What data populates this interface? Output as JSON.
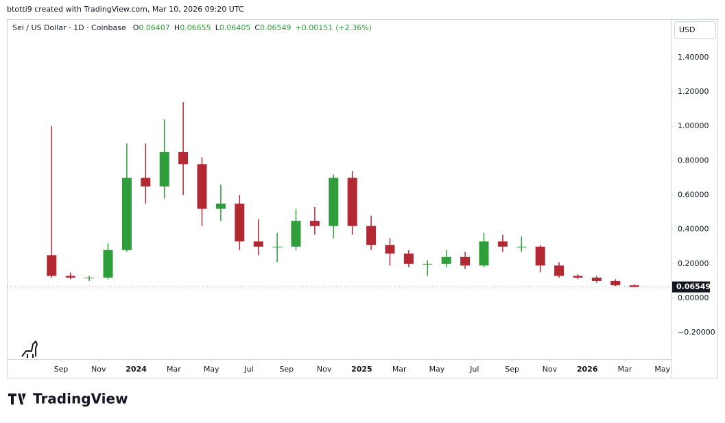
{
  "header": "btotti9 created with TradingView.com, Mar 10, 2026 09:20 UTC",
  "brand": "TradingView",
  "chart_data": {
    "type": "candlestick",
    "title": "Sei / US Dollar · 1D · Coinbase",
    "legend": {
      "labels": [
        "O",
        "H",
        "L",
        "C"
      ],
      "open": 0.06407,
      "high": 0.06655,
      "low": 0.06405,
      "change": {
        "value": 0.00151,
        "label": "+0.00151"
      },
      "change_pct": {
        "value": 2.36,
        "label": "(+2.36%)"
      }
    },
    "currency": "USD",
    "up_color": "#2e9e3a",
    "down_color": "#b22833",
    "x": [
      "2023-08",
      "2023-09",
      "2023-10",
      "2023-11",
      "2023-12",
      "2024-01",
      "2024-02",
      "2024-03",
      "2024-04",
      "2024-05",
      "2024-06",
      "2024-07",
      "2024-08",
      "2024-09",
      "2024-10",
      "2024-11",
      "2024-12",
      "2025-01",
      "2025-02",
      "2025-03",
      "2025-04",
      "2025-05",
      "2025-06",
      "2025-07",
      "2025-08",
      "2025-09",
      "2025-10",
      "2025-11",
      "2025-12",
      "2026-01",
      "2026-02",
      "2026-03"
    ],
    "open": [
      0.25,
      0.13,
      0.12,
      0.12,
      0.28,
      0.7,
      0.65,
      0.85,
      0.78,
      0.52,
      0.55,
      0.33,
      0.3,
      0.3,
      0.45,
      0.42,
      0.7,
      0.42,
      0.31,
      0.26,
      0.2,
      0.2,
      0.24,
      0.19,
      0.33,
      0.3,
      0.3,
      0.19,
      0.13,
      0.12,
      0.1,
      0.075
    ],
    "high": [
      1.0,
      0.15,
      0.13,
      0.32,
      0.9,
      0.9,
      1.04,
      1.14,
      0.82,
      0.66,
      0.6,
      0.46,
      0.38,
      0.52,
      0.53,
      0.72,
      0.74,
      0.48,
      0.35,
      0.28,
      0.22,
      0.28,
      0.27,
      0.38,
      0.37,
      0.36,
      0.31,
      0.21,
      0.14,
      0.13,
      0.11,
      0.08
    ],
    "low": [
      0.12,
      0.11,
      0.1,
      0.11,
      0.27,
      0.55,
      0.58,
      0.6,
      0.42,
      0.45,
      0.28,
      0.25,
      0.21,
      0.28,
      0.37,
      0.35,
      0.37,
      0.28,
      0.19,
      0.18,
      0.13,
      0.18,
      0.17,
      0.18,
      0.27,
      0.27,
      0.15,
      0.12,
      0.11,
      0.09,
      0.07,
      0.063
    ],
    "close": [
      0.13,
      0.12,
      0.12,
      0.28,
      0.7,
      0.65,
      0.85,
      0.78,
      0.52,
      0.55,
      0.33,
      0.3,
      0.3,
      0.45,
      0.42,
      0.7,
      0.42,
      0.31,
      0.26,
      0.2,
      0.2,
      0.24,
      0.19,
      0.33,
      0.3,
      0.3,
      0.19,
      0.13,
      0.12,
      0.1,
      0.075,
      0.06549
    ],
    "ylim": [
      -0.355,
      1.623
    ],
    "yticks": [
      {
        "value": -0.2,
        "label": "−0.20000"
      },
      {
        "value": 0,
        "label": "0.00000"
      },
      {
        "value": 0.2,
        "label": "0.20000"
      },
      {
        "value": 0.4,
        "label": "0.40000"
      },
      {
        "value": 0.6,
        "label": "0.60000"
      },
      {
        "value": 0.8,
        "label": "0.80000"
      },
      {
        "value": 1.0,
        "label": "1.00000"
      },
      {
        "value": 1.2,
        "label": "1.20000"
      },
      {
        "value": 1.4,
        "label": "1.40000"
      }
    ],
    "xticks": [
      {
        "value": "2023-09",
        "label": "Sep"
      },
      {
        "value": "2023-11",
        "label": "Nov"
      },
      {
        "value": "2024-01",
        "label": "2024"
      },
      {
        "value": "2024-03",
        "label": "Mar"
      },
      {
        "value": "2024-05",
        "label": "May"
      },
      {
        "value": "2024-07",
        "label": "Jul"
      },
      {
        "value": "2024-09",
        "label": "Sep"
      },
      {
        "value": "2024-11",
        "label": "Nov"
      },
      {
        "value": "2025-01",
        "label": "2025"
      },
      {
        "value": "2025-03",
        "label": "Mar"
      },
      {
        "value": "2025-05",
        "label": "May"
      },
      {
        "value": "2025-07",
        "label": "Jul"
      },
      {
        "value": "2025-09",
        "label": "Sep"
      },
      {
        "value": "2025-11",
        "label": "Nov"
      },
      {
        "value": "2026-01",
        "label": "2026"
      },
      {
        "value": "2026-03",
        "label": "Mar"
      },
      {
        "value": "2026-05",
        "label": "May"
      }
    ]
  }
}
